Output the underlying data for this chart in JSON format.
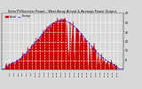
{
  "title": "Solar PV/Inverter Power - West Array Actual & Average Power Output",
  "background_color": "#d8d8d8",
  "fill_color": "#cc0000",
  "line_color": "#cc0000",
  "avg_line_color": "#0000ff",
  "peak_value": 4200,
  "peak_hour": 13.0,
  "sigma": 2.8,
  "start_hour": 6.5,
  "end_hour": 19.5,
  "xlim": [
    6.0,
    20.2
  ],
  "ylim": [
    0,
    4800
  ],
  "ytick_vals": [
    800,
    1600,
    2400,
    3200,
    4000,
    4800
  ],
  "ytick_labels": [
    "8.",
    "16.",
    "24.",
    "32.",
    "40.",
    "48."
  ],
  "grid_color": "#ffffff",
  "legend_actual": "Actual",
  "legend_avg": "Average"
}
